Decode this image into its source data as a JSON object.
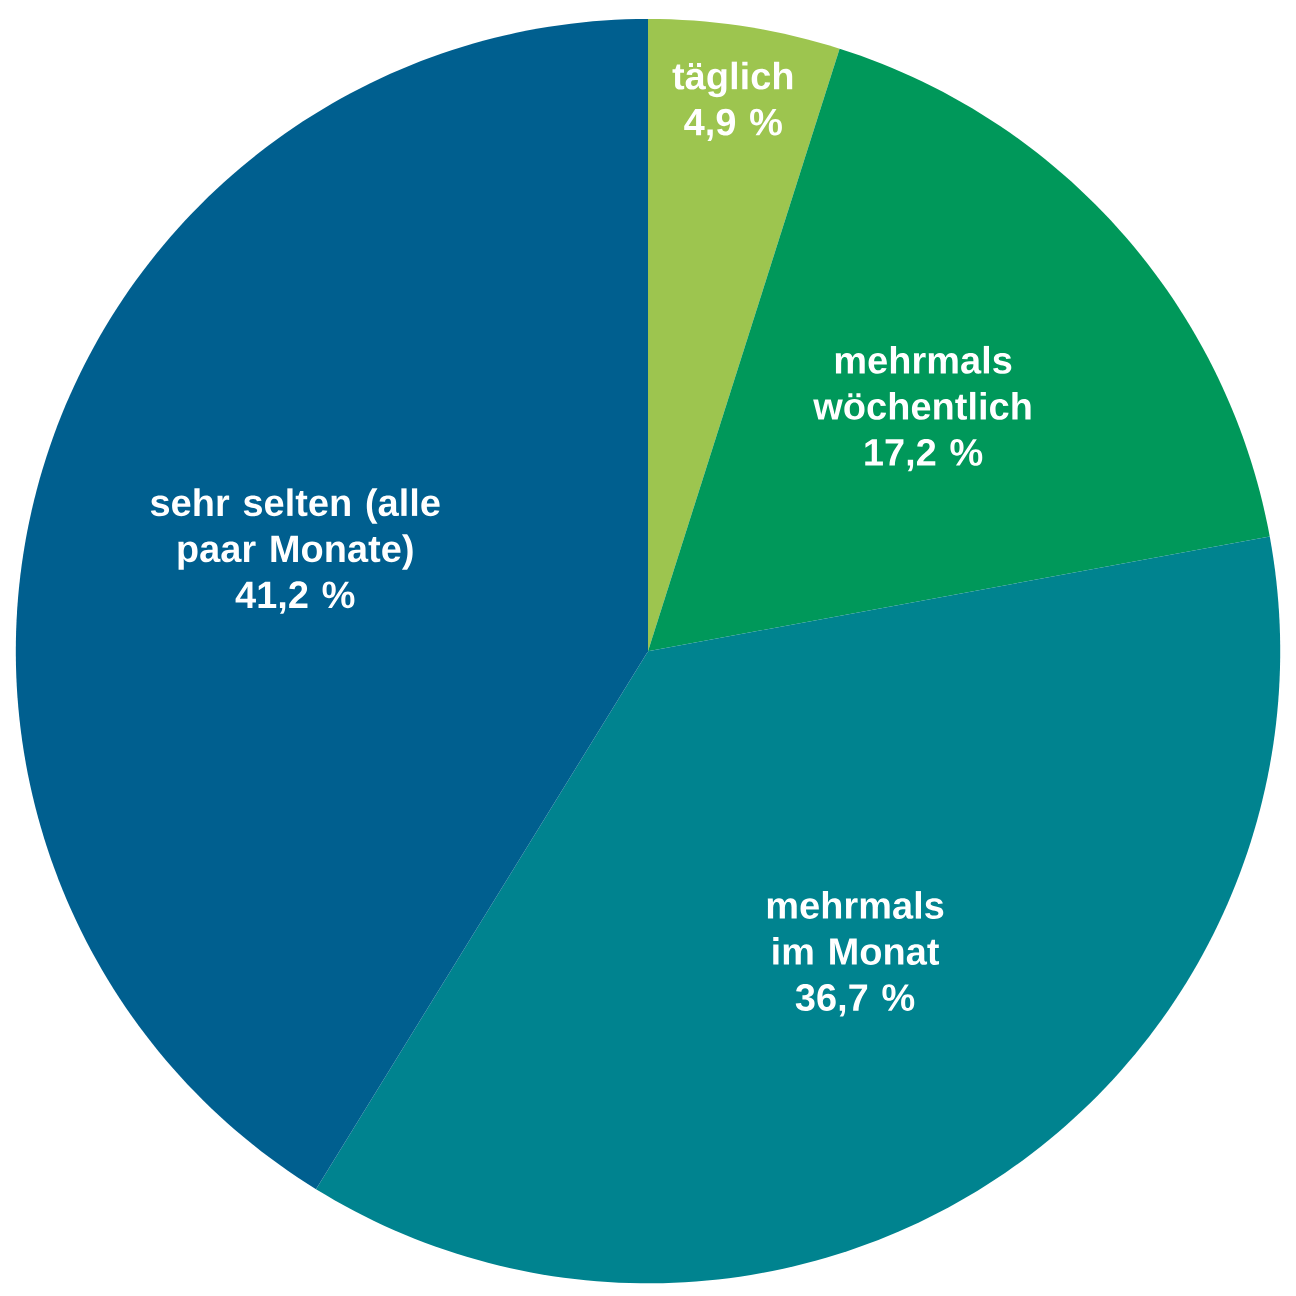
{
  "chart_data": {
    "type": "pie",
    "categories": [
      "täglich",
      "mehrmals wöchentlich",
      "mehrmals im Monat",
      "sehr selten (alle paar Monate)"
    ],
    "values": [
      4.9,
      17.2,
      36.7,
      41.2
    ],
    "value_labels": [
      "4,9 %",
      "17,2 %",
      "36,7 %",
      "41,2 %"
    ],
    "colors": [
      "#9dc54f",
      "#00985a",
      "#00838f",
      "#005f8f"
    ]
  }
}
